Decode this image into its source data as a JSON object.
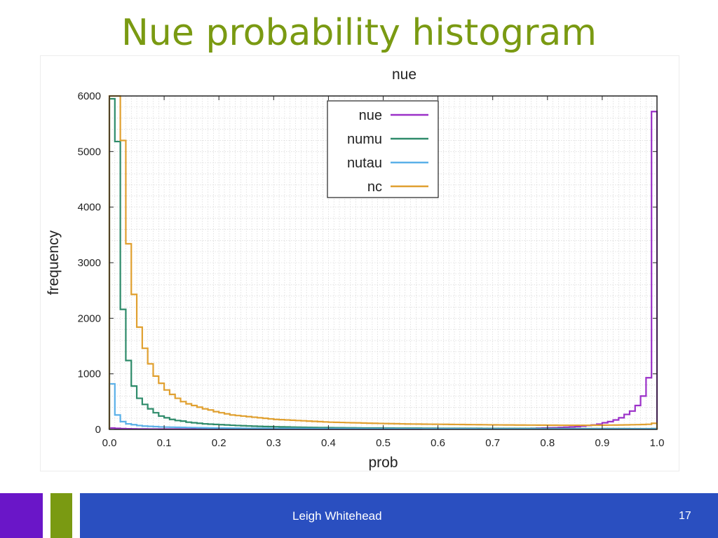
{
  "slide": {
    "title": "Nue probability histogram",
    "author": "Leigh Whitehead",
    "page_number": "17"
  },
  "colors": {
    "title": "#7a9a12",
    "footer_purple": "#6a16c8",
    "footer_green": "#7a9a12",
    "footer_blue": "#2a4fc0",
    "grid": "#d0d0d0"
  },
  "chart_data": {
    "type": "histogram",
    "title": "nue",
    "xlabel": "prob",
    "ylabel": "frequency",
    "xlim": [
      0.0,
      1.0
    ],
    "ylim": [
      0,
      6000
    ],
    "xticks": [
      0.0,
      0.1,
      0.2,
      0.3,
      0.4,
      0.5,
      0.6,
      0.7,
      0.8,
      0.9,
      1.0
    ],
    "xtick_labels": [
      "0.0",
      "0.1",
      "0.2",
      "0.3",
      "0.4",
      "0.5",
      "0.6",
      "0.7",
      "0.8",
      "0.9",
      "1.0"
    ],
    "yticks": [
      0,
      1000,
      2000,
      3000,
      4000,
      5000,
      6000
    ],
    "ytick_labels": [
      "0",
      "1000",
      "2000",
      "3000",
      "4000",
      "5000",
      "6000"
    ],
    "grid": true,
    "legend_position": "top-center",
    "bin_width": 0.01,
    "series": [
      {
        "name": "nue",
        "color": "#9b30c8",
        "values": [
          25,
          20,
          15,
          12,
          10,
          8,
          8,
          7,
          7,
          6,
          6,
          6,
          6,
          5,
          5,
          5,
          5,
          5,
          5,
          5,
          5,
          5,
          5,
          5,
          5,
          5,
          5,
          5,
          5,
          5,
          5,
          5,
          5,
          5,
          5,
          5,
          5,
          5,
          5,
          5,
          5,
          5,
          5,
          5,
          5,
          5,
          5,
          5,
          5,
          5,
          5,
          5,
          5,
          5,
          5,
          5,
          5,
          6,
          6,
          6,
          6,
          6,
          7,
          7,
          7,
          8,
          8,
          9,
          10,
          10,
          11,
          12,
          13,
          14,
          15,
          16,
          18,
          20,
          22,
          25,
          28,
          31,
          35,
          40,
          45,
          50,
          60,
          70,
          80,
          95,
          120,
          140,
          170,
          210,
          270,
          330,
          430,
          600,
          930,
          5720
        ]
      },
      {
        "name": "numu",
        "color": "#2e8b6a",
        "values": [
          5950,
          5180,
          2160,
          1240,
          780,
          560,
          450,
          370,
          300,
          240,
          210,
          180,
          160,
          150,
          130,
          120,
          110,
          100,
          95,
          90,
          85,
          80,
          75,
          70,
          66,
          62,
          58,
          55,
          52,
          50,
          48,
          46,
          44,
          42,
          40,
          38,
          36,
          35,
          34,
          33,
          32,
          31,
          30,
          29,
          28,
          27,
          26,
          26,
          25,
          25,
          24,
          24,
          23,
          23,
          22,
          22,
          22,
          21,
          21,
          21,
          20,
          20,
          20,
          20,
          19,
          19,
          19,
          19,
          18,
          18,
          18,
          18,
          18,
          17,
          17,
          17,
          17,
          17,
          16,
          16,
          16,
          16,
          16,
          15,
          15,
          15,
          15,
          15,
          15,
          14,
          14,
          14,
          14,
          14,
          14,
          13,
          13,
          13,
          13,
          14
        ]
      },
      {
        "name": "nutau",
        "color": "#5ab0e8",
        "values": [
          820,
          260,
          140,
          100,
          85,
          70,
          60,
          55,
          50,
          45,
          42,
          40,
          38,
          36,
          34,
          32,
          30,
          28,
          27,
          26,
          25,
          24,
          23,
          22,
          21,
          20,
          20,
          19,
          19,
          18,
          18,
          17,
          17,
          17,
          16,
          16,
          16,
          15,
          15,
          15,
          15,
          14,
          14,
          14,
          14,
          14,
          13,
          13,
          13,
          13,
          13,
          13,
          12,
          12,
          12,
          12,
          12,
          12,
          12,
          11,
          11,
          11,
          11,
          11,
          11,
          11,
          11,
          10,
          10,
          10,
          10,
          10,
          10,
          10,
          10,
          10,
          10,
          10,
          10,
          10,
          10,
          10,
          10,
          10,
          10,
          10,
          10,
          10,
          10,
          10,
          10,
          10,
          10,
          10,
          10,
          10,
          10,
          10,
          10,
          10
        ]
      },
      {
        "name": "nc",
        "color": "#e0a030",
        "values": [
          6000,
          6000,
          5200,
          3340,
          2430,
          1840,
          1460,
          1180,
          960,
          830,
          710,
          630,
          560,
          500,
          460,
          430,
          400,
          370,
          350,
          320,
          300,
          280,
          260,
          250,
          240,
          230,
          220,
          210,
          200,
          190,
          180,
          175,
          170,
          165,
          160,
          155,
          150,
          145,
          140,
          135,
          130,
          128,
          125,
          122,
          120,
          118,
          115,
          112,
          110,
          108,
          106,
          104,
          102,
          100,
          98,
          97,
          96,
          95,
          94,
          93,
          92,
          91,
          90,
          89,
          88,
          87,
          86,
          85,
          84,
          83,
          82,
          81,
          80,
          80,
          79,
          79,
          78,
          78,
          77,
          77,
          76,
          76,
          75,
          75,
          75,
          75,
          75,
          75,
          76,
          76,
          77,
          78,
          79,
          80,
          82,
          84,
          86,
          88,
          92,
          110
        ]
      }
    ]
  }
}
